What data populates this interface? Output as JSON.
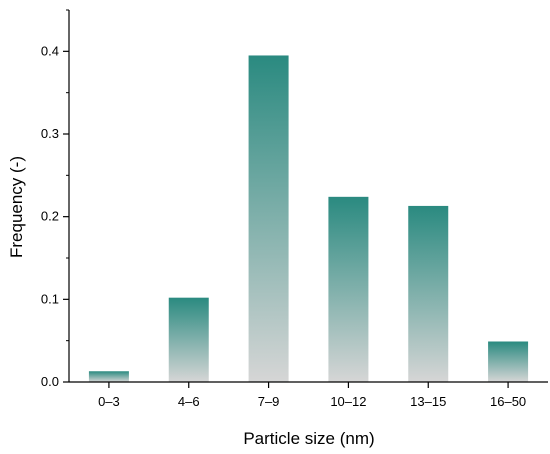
{
  "chart_data": {
    "type": "bar",
    "title": "",
    "xlabel": "Particle size (nm)",
    "ylabel": "Frequency (-)",
    "categories": [
      "0–3",
      "4–6",
      "7–9",
      "10–12",
      "13–15",
      "16–50"
    ],
    "values": [
      0.013,
      0.102,
      0.395,
      0.224,
      0.213,
      0.049
    ],
    "ylim": [
      0,
      0.45
    ],
    "yticks": [
      "0.0",
      "0.1",
      "0.2",
      "0.3",
      "0.4"
    ],
    "grid": false,
    "legend": "none",
    "colors": {
      "bar_top": "#2a8a80",
      "bar_bottom": "#d6d6d6",
      "axis": "#000000"
    }
  }
}
